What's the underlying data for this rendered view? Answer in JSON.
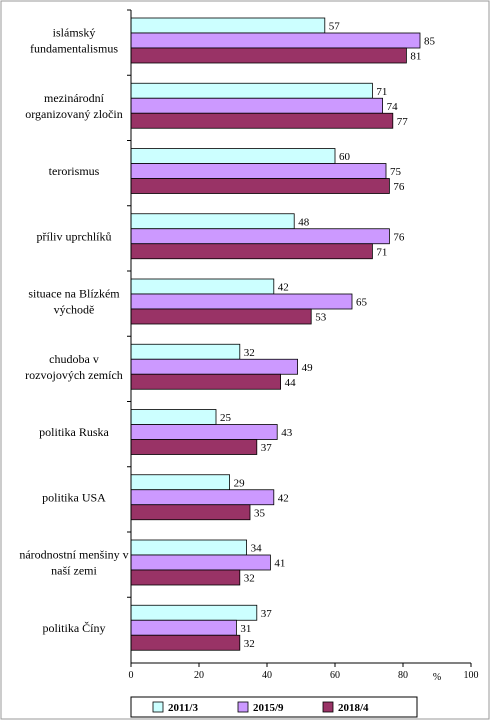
{
  "chart_data": {
    "type": "bar",
    "orientation": "horizontal",
    "categories": [
      [
        "islámský",
        "fundamentalismus"
      ],
      [
        "mezinárodní",
        "organizovaný zločin"
      ],
      [
        "terorismus"
      ],
      [
        "příliv uprchlíků"
      ],
      [
        "situace na Blízkém",
        "východě"
      ],
      [
        "chudoba v",
        "rozvojových zemích"
      ],
      [
        "politika Ruska"
      ],
      [
        "politika USA"
      ],
      [
        "národnostní menšiny v",
        "naší zemi"
      ],
      [
        "politika Číny"
      ]
    ],
    "series": [
      {
        "name": "2011/3",
        "color": "#ccffff",
        "values": [
          57,
          71,
          60,
          48,
          42,
          32,
          25,
          29,
          34,
          37
        ]
      },
      {
        "name": "2015/9",
        "color": "#cc99ff",
        "values": [
          85,
          74,
          75,
          76,
          65,
          49,
          43,
          42,
          41,
          31
        ]
      },
      {
        "name": "2018/4",
        "color": "#993366",
        "values": [
          81,
          77,
          76,
          71,
          53,
          44,
          37,
          35,
          32,
          32
        ]
      }
    ],
    "xlim": [
      0,
      100
    ],
    "xticks": [
      0,
      20,
      40,
      60,
      80,
      100
    ],
    "xunit": "%",
    "grid": false,
    "legend_position": "bottom"
  }
}
